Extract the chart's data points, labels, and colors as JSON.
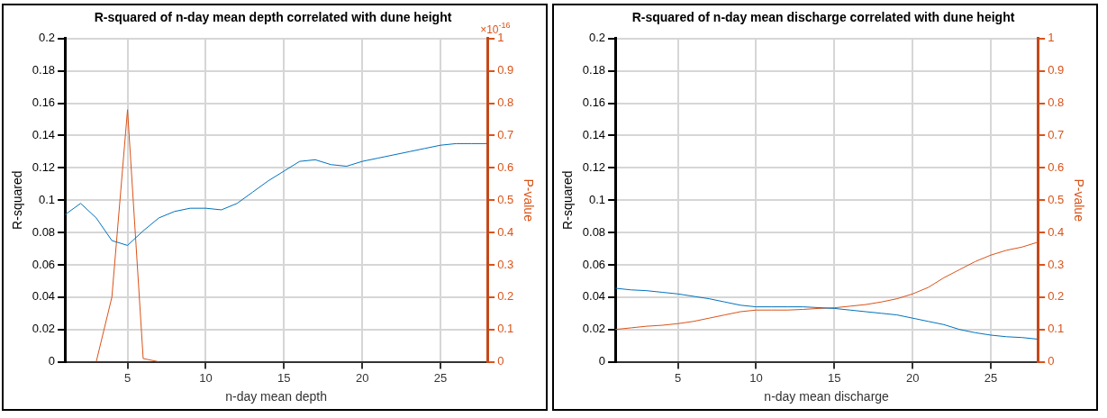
{
  "chart_data": [
    {
      "type": "line",
      "title": "R-squared of n-day mean depth correlated with dune height",
      "xlabel": "n-day mean depth",
      "ylabel": "R-squared",
      "y2label": "P-value",
      "annotations": [
        "×10$^{-16}$"
      ],
      "x": [
        1,
        2,
        3,
        4,
        5,
        6,
        7,
        8,
        9,
        10,
        11,
        12,
        13,
        14,
        15,
        16,
        17,
        18,
        19,
        20,
        21,
        22,
        23,
        24,
        25,
        26,
        27,
        28
      ],
      "series": [
        {
          "color": "#0072bd",
          "values": [
            0.091,
            0.098,
            0.089,
            0.075,
            0.072,
            0.081,
            0.089,
            0.093,
            0.095,
            0.095,
            0.094,
            0.098,
            0.105,
            0.112,
            0.118,
            0.124,
            0.125,
            0.122,
            0.121,
            0.124,
            0.126,
            0.128,
            0.13,
            0.132,
            0.134,
            0.135,
            0.135,
            0.135
          ]
        },
        {
          "color": "#d95319",
          "axis": "y2",
          "values": [
            null,
            null,
            0,
            0.2,
            0.78,
            0.01,
            0,
            null,
            null,
            null,
            null,
            null,
            null,
            null,
            null,
            null,
            null,
            null,
            null,
            null,
            null,
            null,
            null,
            null,
            null,
            null,
            null,
            null
          ]
        }
      ],
      "xlim": [
        1,
        28
      ],
      "xticks": [
        5,
        10,
        15,
        20,
        25
      ],
      "ylim": [
        0,
        0.2
      ],
      "yticks": [
        0,
        0.02,
        0.04,
        0.06,
        0.08,
        0.1,
        0.12,
        0.14,
        0.16,
        0.18,
        0.2
      ],
      "y2lim": [
        0,
        1
      ],
      "y2ticks": [
        0,
        0.1,
        0.2,
        0.3,
        0.4,
        0.5,
        0.6,
        0.7,
        0.8,
        0.9,
        1
      ],
      "grid": true,
      "legend": false,
      "marker": "none",
      "line_style": "solid"
    },
    {
      "type": "line",
      "title": "R-squared of n-day mean discharge correlated with dune height",
      "xlabel": "n-day mean discharge",
      "ylabel": "R-squared",
      "y2label": "P-value",
      "x": [
        1,
        2,
        3,
        4,
        5,
        6,
        7,
        8,
        9,
        10,
        11,
        12,
        13,
        14,
        15,
        16,
        17,
        18,
        19,
        20,
        21,
        22,
        23,
        24,
        25,
        26,
        27,
        28
      ],
      "series": [
        {
          "color": "#0072bd",
          "values": [
            0.0455,
            0.0445,
            0.044,
            0.043,
            0.042,
            0.0405,
            0.039,
            0.037,
            0.035,
            0.034,
            0.034,
            0.034,
            0.034,
            0.0335,
            0.033,
            0.032,
            0.031,
            0.03,
            0.029,
            0.027,
            0.025,
            0.023,
            0.02,
            0.018,
            0.0165,
            0.0155,
            0.015,
            0.014
          ]
        },
        {
          "color": "#d95319",
          "axis": "y2",
          "values": [
            0.1,
            0.105,
            0.11,
            0.113,
            0.118,
            0.125,
            0.135,
            0.145,
            0.155,
            0.16,
            0.16,
            0.16,
            0.162,
            0.165,
            0.167,
            0.172,
            0.177,
            0.185,
            0.195,
            0.21,
            0.23,
            0.26,
            0.285,
            0.31,
            0.33,
            0.345,
            0.355,
            0.37
          ]
        }
      ],
      "xlim": [
        1,
        28
      ],
      "xticks": [
        5,
        10,
        15,
        20,
        25
      ],
      "ylim": [
        0,
        0.2
      ],
      "yticks": [
        0,
        0.02,
        0.04,
        0.06,
        0.08,
        0.1,
        0.12,
        0.14,
        0.16,
        0.18,
        0.2
      ],
      "y2lim": [
        0,
        1
      ],
      "y2ticks": [
        0,
        0.1,
        0.2,
        0.3,
        0.4,
        0.5,
        0.6,
        0.7,
        0.8,
        0.9,
        1
      ],
      "grid": true,
      "legend": false,
      "marker": "none",
      "line_style": "solid"
    }
  ]
}
